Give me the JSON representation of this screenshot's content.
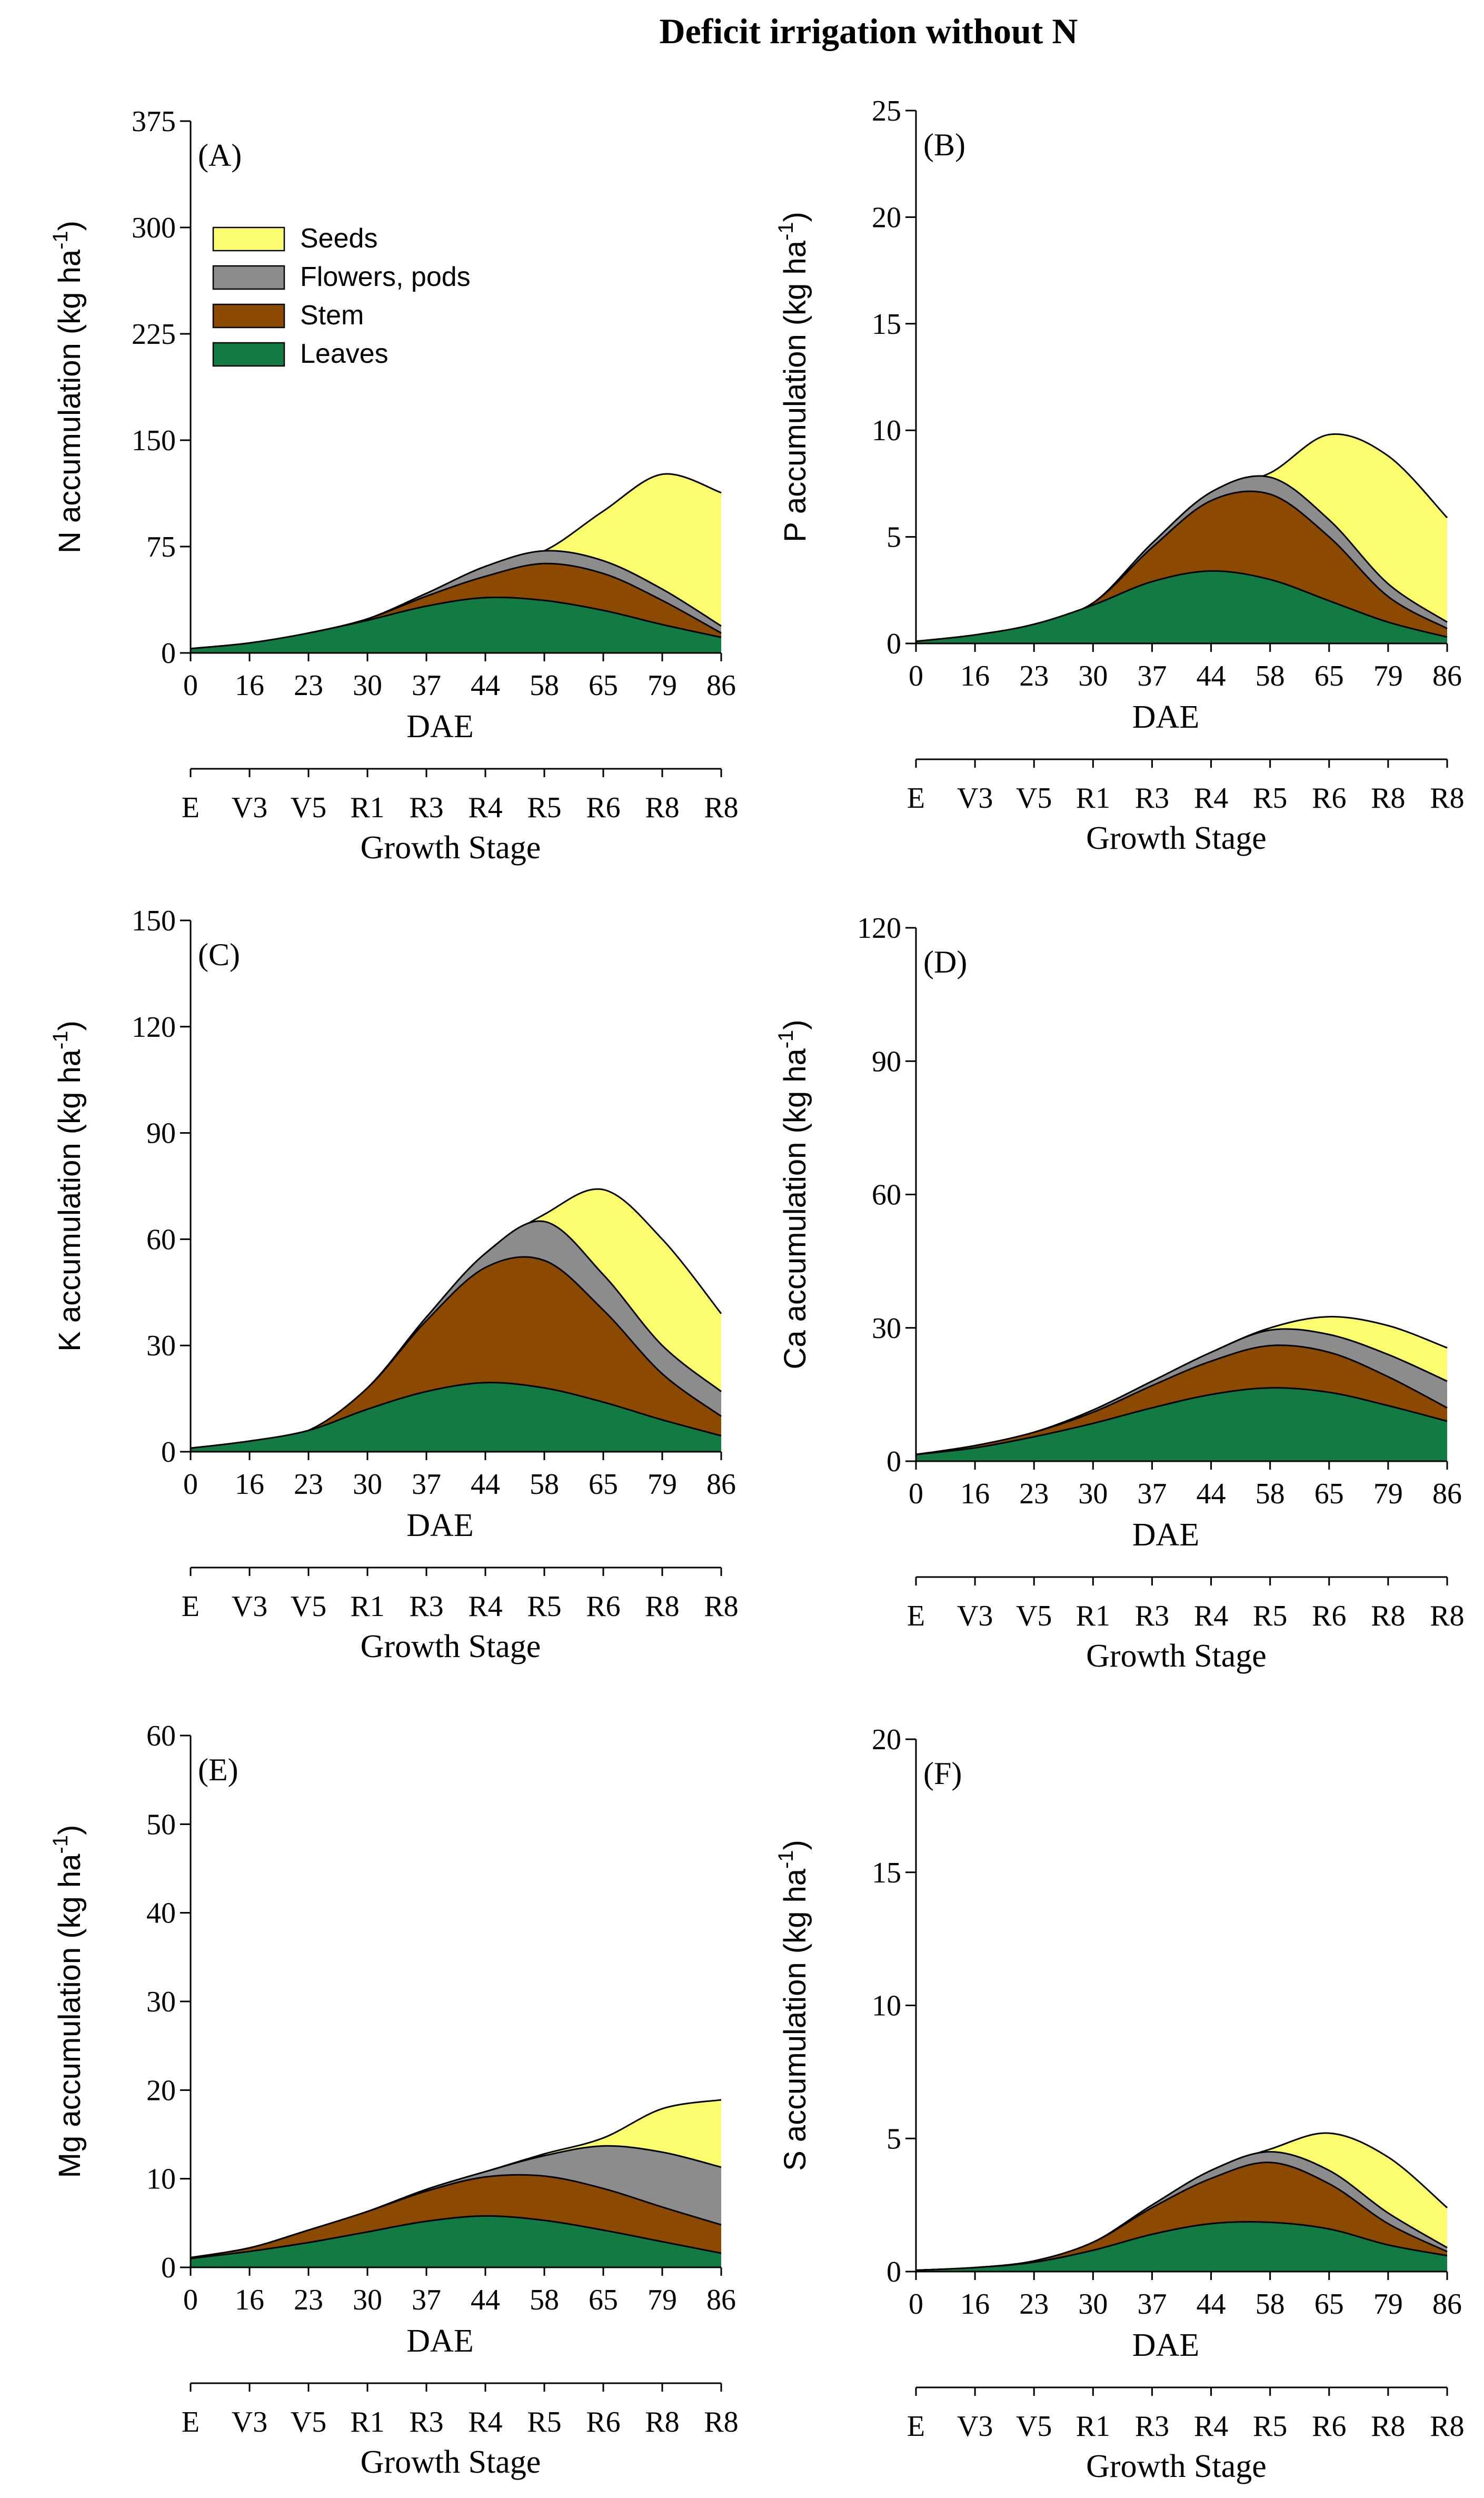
{
  "title": "Deficit irrigation without N",
  "colors": {
    "Seeds": "#fcfc6f",
    "Flowers, pods": "#8c8c8c",
    "Stem": "#8c4a00",
    "Leaves": "#127a43"
  },
  "legend": {
    "placement": "top-left of panel A",
    "entries": [
      "Seeds",
      "Flowers, pods",
      "Stem",
      "Leaves"
    ]
  },
  "chart_data": [
    {
      "type": "area",
      "panel": "(A)",
      "ylabel_main": "N  accumulation (kg ha",
      "ylabel_sup": "-1",
      "ylabel_close": ")",
      "xlabel": "DAE",
      "x2label": "Growth Stage",
      "categories": [
        "0",
        "16",
        "23",
        "30",
        "37",
        "44",
        "58",
        "65",
        "79",
        "86"
      ],
      "growth_stages": [
        "E",
        "V3",
        "V5",
        "R1",
        "R3",
        "R4",
        "R5",
        "R6",
        "R8",
        "R8"
      ],
      "ylim": [
        0,
        375
      ],
      "yticks": [
        "0",
        "75",
        "150",
        "225",
        "300",
        "375"
      ],
      "stacking": "cumulative",
      "series": [
        {
          "name": "Leaves",
          "values": [
            3,
            7,
            14,
            23,
            33,
            39,
            37,
            30,
            20,
            11
          ]
        },
        {
          "name": "Stem",
          "values": [
            3,
            7,
            14,
            24,
            40,
            54,
            63,
            56,
            37,
            14
          ]
        },
        {
          "name": "Flowers, pods",
          "values": [
            3,
            7,
            14,
            24,
            42,
            61,
            72,
            65,
            45,
            19
          ]
        },
        {
          "name": "Seeds",
          "values": [
            3,
            7,
            14,
            24,
            42,
            61,
            72,
            100,
            126,
            113
          ]
        }
      ]
    },
    {
      "type": "area",
      "panel": "(B)",
      "ylabel_main": "P  accumulation (kg ha",
      "ylabel_sup": "-1",
      "ylabel_close": ")",
      "xlabel": "DAE",
      "x2label": "Growth Stage",
      "categories": [
        "0",
        "16",
        "23",
        "30",
        "37",
        "44",
        "58",
        "65",
        "79",
        "86"
      ],
      "growth_stages": [
        "E",
        "V3",
        "V5",
        "R1",
        "R3",
        "R4",
        "R5",
        "R6",
        "R8",
        "R8"
      ],
      "ylim": [
        0,
        25
      ],
      "yticks": [
        "0",
        "5",
        "10",
        "15",
        "20",
        "25"
      ],
      "stacking": "cumulative",
      "series": [
        {
          "name": "Leaves",
          "values": [
            0.1,
            0.4,
            0.9,
            1.8,
            2.9,
            3.4,
            3.0,
            2.0,
            1.0,
            0.3
          ]
        },
        {
          "name": "Stem",
          "values": [
            0.1,
            0.4,
            0.9,
            1.9,
            4.5,
            6.7,
            7.0,
            5.0,
            2.2,
            0.7
          ]
        },
        {
          "name": "Flowers, pods",
          "values": [
            0.1,
            0.4,
            0.9,
            1.9,
            4.7,
            7.1,
            7.8,
            5.8,
            2.8,
            1.0
          ]
        },
        {
          "name": "Seeds",
          "values": [
            0.1,
            0.4,
            0.9,
            1.9,
            4.7,
            7.1,
            8.0,
            9.8,
            8.8,
            5.9
          ]
        }
      ]
    },
    {
      "type": "area",
      "panel": "(C)",
      "ylabel_main": "K  accumulation (kg ha",
      "ylabel_sup": "-1",
      "ylabel_close": ")",
      "xlabel": "DAE",
      "x2label": "Growth Stage",
      "categories": [
        "0",
        "16",
        "23",
        "30",
        "37",
        "44",
        "58",
        "65",
        "79",
        "86"
      ],
      "growth_stages": [
        "E",
        "V3",
        "V5",
        "R1",
        "R3",
        "R4",
        "R5",
        "R6",
        "R8",
        "R8"
      ],
      "ylim": [
        0,
        150
      ],
      "yticks": [
        "0",
        "30",
        "60",
        "90",
        "120",
        "150"
      ],
      "stacking": "cumulative",
      "series": [
        {
          "name": "Leaves",
          "values": [
            1,
            3,
            6,
            12,
            17,
            19.5,
            18,
            14,
            9,
            4.5
          ]
        },
        {
          "name": "Stem",
          "values": [
            1,
            3,
            6,
            18,
            37,
            52,
            54,
            40,
            22,
            10
          ]
        },
        {
          "name": "Flowers, pods",
          "values": [
            1,
            3,
            6,
            18,
            38,
            56,
            65,
            50,
            30,
            17
          ]
        },
        {
          "name": "Seeds",
          "values": [
            1,
            3,
            6,
            18,
            38,
            56,
            67,
            74,
            60,
            39
          ]
        }
      ]
    },
    {
      "type": "area",
      "panel": "(D)",
      "ylabel_main": "Ca  accumulation (kg ha",
      "ylabel_sup": "-1",
      "ylabel_close": ")",
      "xlabel": "DAE",
      "x2label": "Growth Stage",
      "categories": [
        "0",
        "16",
        "23",
        "30",
        "37",
        "44",
        "58",
        "65",
        "79",
        "86"
      ],
      "growth_stages": [
        "E",
        "V3",
        "V5",
        "R1",
        "R3",
        "R4",
        "R5",
        "R6",
        "R8",
        "R8"
      ],
      "ylim": [
        0,
        120
      ],
      "yticks": [
        "0",
        "30",
        "60",
        "90",
        "120"
      ],
      "stacking": "cumulative",
      "series": [
        {
          "name": "Leaves",
          "values": [
            1.5,
            3,
            5.5,
            8.5,
            12,
            15,
            16.5,
            15.5,
            12.5,
            9
          ]
        },
        {
          "name": "Stem",
          "values": [
            1.5,
            3.5,
            6.5,
            11,
            17,
            22.5,
            26,
            24.5,
            19,
            12
          ]
        },
        {
          "name": "Flowers, pods",
          "values": [
            1.5,
            3.5,
            6.5,
            11.5,
            18,
            24.5,
            29.5,
            28.5,
            24,
            18
          ]
        },
        {
          "name": "Seeds",
          "values": [
            1.5,
            3.5,
            6.5,
            11.5,
            18,
            24.5,
            30,
            32.5,
            30.5,
            25.5
          ]
        }
      ]
    },
    {
      "type": "area",
      "panel": "(E)",
      "ylabel_main": "Mg  accumulation (kg ha",
      "ylabel_sup": "-1",
      "ylabel_close": ")",
      "xlabel": "DAE",
      "x2label": "Growth Stage",
      "categories": [
        "0",
        "16",
        "23",
        "30",
        "37",
        "44",
        "58",
        "65",
        "79",
        "86"
      ],
      "growth_stages": [
        "E",
        "V3",
        "V5",
        "R1",
        "R3",
        "R4",
        "R5",
        "R6",
        "R8",
        "R8"
      ],
      "ylim": [
        0,
        60
      ],
      "yticks": [
        "0",
        "10",
        "20",
        "30",
        "40",
        "50",
        "60"
      ],
      "stacking": "cumulative",
      "series": [
        {
          "name": "Leaves",
          "values": [
            1,
            1.8,
            2.8,
            4,
            5.2,
            5.8,
            5.3,
            4.2,
            2.9,
            1.6
          ]
        },
        {
          "name": "Stem",
          "values": [
            1.1,
            2.2,
            4.2,
            6.3,
            8.6,
            10.2,
            10.3,
            8.9,
            6.8,
            4.8
          ]
        },
        {
          "name": "Flowers, pods",
          "values": [
            1.1,
            2.2,
            4.2,
            6.3,
            8.8,
            10.8,
            12.6,
            13.7,
            13,
            11.3
          ]
        },
        {
          "name": "Seeds",
          "values": [
            1.1,
            2.2,
            4.2,
            6.3,
            8.8,
            10.8,
            12.8,
            14.6,
            17.9,
            18.9
          ]
        }
      ]
    },
    {
      "type": "area",
      "panel": "(F)",
      "ylabel_main": "S  accumulation (kg ha",
      "ylabel_sup": "-1",
      "ylabel_close": ")",
      "xlabel": "DAE",
      "x2label": "Growth Stage",
      "categories": [
        "0",
        "16",
        "23",
        "30",
        "37",
        "44",
        "58",
        "65",
        "79",
        "86"
      ],
      "growth_stages": [
        "E",
        "V3",
        "V5",
        "R1",
        "R3",
        "R4",
        "R5",
        "R6",
        "R8",
        "R8"
      ],
      "ylim": [
        0,
        20
      ],
      "yticks": [
        "0",
        "5",
        "10",
        "15",
        "20"
      ],
      "stacking": "cumulative",
      "series": [
        {
          "name": "Leaves",
          "values": [
            0.05,
            0.15,
            0.35,
            0.8,
            1.4,
            1.8,
            1.85,
            1.6,
            1.0,
            0.6
          ]
        },
        {
          "name": "Stem",
          "values": [
            0.05,
            0.15,
            0.4,
            1.1,
            2.4,
            3.5,
            4.1,
            3.3,
            1.8,
            0.75
          ]
        },
        {
          "name": "Flowers, pods",
          "values": [
            0.05,
            0.15,
            0.4,
            1.1,
            2.5,
            3.8,
            4.5,
            3.8,
            2.2,
            0.9
          ]
        },
        {
          "name": "Seeds",
          "values": [
            0.05,
            0.15,
            0.4,
            1.1,
            2.5,
            3.8,
            4.6,
            5.2,
            4.3,
            2.4
          ]
        }
      ]
    }
  ]
}
